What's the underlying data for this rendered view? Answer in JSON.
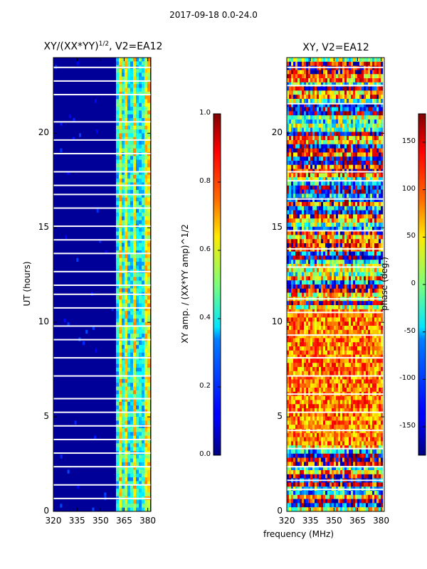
{
  "suptitle": "2017-09-18 0.0-24.0",
  "left_panel": {
    "title_text": "XY/(XX*YY)",
    "title_sup": "1/2",
    "title_suffix": ", V2=EA12"
  },
  "right_panel": {
    "title": "XY, V2=EA12"
  },
  "left_colorbar_label": "XY amp. / (XX*YY amp)^1/2",
  "right_colorbar_label": "phase (deg.)",
  "chart_data": [
    {
      "type": "heatmap",
      "title": "XY/(XX*YY)^1/2, V2=EA12",
      "xlabel": "",
      "ylabel": "UT (hours)",
      "xlim": [
        320,
        382
      ],
      "ylim": [
        0,
        24
      ],
      "xticks": [
        "320",
        "335",
        "350",
        "365",
        "380"
      ],
      "yticks": [
        "0",
        "5",
        "10",
        "15",
        "20"
      ],
      "colorbar": {
        "range": [
          0.0,
          1.0
        ],
        "ticks": [
          "0.0",
          "0.2",
          "0.4",
          "0.6",
          "0.8",
          "1.0"
        ]
      },
      "colormap": "jet"
    },
    {
      "type": "heatmap",
      "title": "XY, V2=EA12",
      "xlabel": "frequency (MHz)",
      "ylabel": "",
      "xlim": [
        320,
        382
      ],
      "ylim": [
        0,
        24
      ],
      "xticks": [
        "320",
        "335",
        "350",
        "365",
        "380"
      ],
      "yticks": [
        "0",
        "5",
        "10",
        "15",
        "20"
      ],
      "colorbar": {
        "range": [
          -180,
          180
        ],
        "ticks": [
          "-150",
          "-100",
          "-50",
          "0",
          "50",
          "100",
          "150"
        ]
      },
      "colormap": "jet"
    }
  ],
  "colors": {
    "background_left": "#000099",
    "axis": "#000000"
  }
}
